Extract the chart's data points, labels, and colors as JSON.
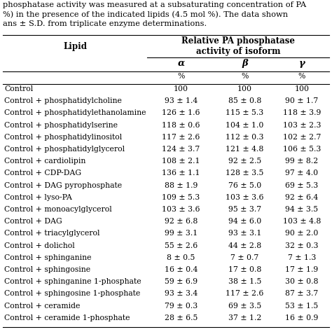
{
  "header_text": "Relative PA phosphatase\nactivity of isoform",
  "col_header1": "Lipid",
  "col_header2": "α",
  "col_header3": "β",
  "col_header4": "γ",
  "percent_label": "%",
  "caption_lines": [
    "phosphatase activity was measured at a subsaturating concentration of PA",
    "%) in the presence of the indicated lipids (4.5 mol %). The data shown",
    "ans ± S.D. from triplicate enzyme determinations."
  ],
  "rows": [
    [
      "Control",
      "100",
      "100",
      "100"
    ],
    [
      "Control + phosphatidylcholine",
      "93 ± 1.4",
      "85 ± 0.8",
      "90 ± 1.7"
    ],
    [
      "Control + phosphatidylethanolamine",
      "126 ± 1.6",
      "115 ± 5.3",
      "118 ± 3.9"
    ],
    [
      "Control + phosphatidylserine",
      "118 ± 0.6",
      "104 ± 1.0",
      "103 ± 2.3"
    ],
    [
      "Control + phosphatidylinositol",
      "117 ± 2.6",
      "112 ± 0.3",
      "102 ± 2.7"
    ],
    [
      "Control + phosphatidylglycerol",
      "124 ± 3.7",
      "121 ± 4.8",
      "106 ± 5.3"
    ],
    [
      "Control + cardiolipin",
      "108 ± 2.1",
      "92 ± 2.5",
      "99 ± 8.2"
    ],
    [
      "Control + CDP-DAG",
      "136 ± 1.1",
      "128 ± 3.5",
      "97 ± 4.0"
    ],
    [
      "Control + DAG pyrophosphate",
      "88 ± 1.9",
      "76 ± 5.0",
      "69 ± 5.3"
    ],
    [
      "Control + lyso-PA",
      "109 ± 5.3",
      "103 ± 3.6",
      "92 ± 6.4"
    ],
    [
      "Control + monoacylglycerol",
      "103 ± 3.6",
      "95 ± 3.7",
      "94 ± 3.5"
    ],
    [
      "Control + DAG",
      "92 ± 6.8",
      "94 ± 6.0",
      "103 ± 4.8"
    ],
    [
      "Control + triacylglycerol",
      "99 ± 3.1",
      "93 ± 3.1",
      "90 ± 2.0"
    ],
    [
      "Control + dolichol",
      "55 ± 2.6",
      "44 ± 2.8",
      "32 ± 0.3"
    ],
    [
      "Control + sphinganine",
      "8 ± 0.5",
      "7 ± 0.7",
      "7 ± 1.3"
    ],
    [
      "Control + sphingosine",
      "16 ± 0.4",
      "17 ± 0.8",
      "17 ± 1.9"
    ],
    [
      "Control + sphinganine 1-phosphate",
      "59 ± 6.9",
      "38 ± 1.5",
      "30 ± 0.8"
    ],
    [
      "Control + sphingosine 1-phosphate",
      "93 ± 3.4",
      "117 ± 2.6",
      "87 ± 3.7"
    ],
    [
      "Control + ceramide",
      "79 ± 0.3",
      "69 ± 3.5",
      "53 ± 1.5"
    ],
    [
      "Control + ceramide 1-phosphate",
      "28 ± 6.5",
      "37 ± 1.2",
      "16 ± 0.9"
    ]
  ],
  "bg_color": "#ffffff",
  "text_color": "#000000",
  "caption_fontsize": 8.2,
  "header_fontsize": 8.5,
  "data_fontsize": 7.8,
  "fig_width": 4.74,
  "fig_height": 4.74,
  "dpi": 100
}
